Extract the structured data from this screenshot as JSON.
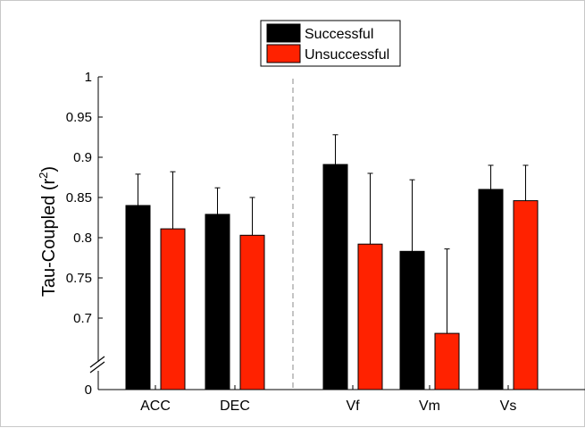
{
  "chart_data": {
    "type": "bar",
    "categories": [
      "ACC",
      "DEC",
      "Vf",
      "Vm",
      "Vs"
    ],
    "series": [
      {
        "name": "Successful",
        "color": "#000000",
        "values": [
          0.84,
          0.829,
          0.891,
          0.783,
          0.86
        ],
        "error_upper": [
          0.879,
          0.862,
          0.928,
          0.872,
          0.89
        ]
      },
      {
        "name": "Unsuccessful",
        "color": "#ff2200",
        "values": [
          0.811,
          0.803,
          0.792,
          0.681,
          0.846
        ],
        "error_upper": [
          0.882,
          0.85,
          0.88,
          0.786,
          0.89
        ]
      }
    ],
    "ylabel_main": "Tau-Coupled (r",
    "ylabel_sup": "2",
    "ylabel_close": ")",
    "ylim": [
      0.65,
      1.0
    ],
    "axis_break": true,
    "yticks": [
      {
        "value": 0.7,
        "label": "0.7"
      },
      {
        "value": 0.75,
        "label": "0.75"
      },
      {
        "value": 0.8,
        "label": "0.8"
      },
      {
        "value": 0.85,
        "label": "0.85"
      },
      {
        "value": 0.9,
        "label": "0.9"
      },
      {
        "value": 0.95,
        "label": "0.95"
      },
      {
        "value": 1.0,
        "label": "1"
      }
    ],
    "y_zero_label": "0",
    "divider": "dashed vertical line between DEC and Vf",
    "legend_position": "top-center",
    "grid": false
  }
}
